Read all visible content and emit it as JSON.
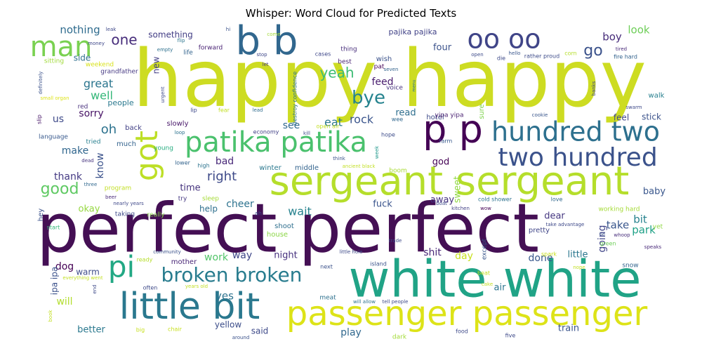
{
  "title": "Whisper: Word Cloud for Predicted Texts",
  "chart_data": {
    "type": "wordcloud",
    "title": "Whisper: Word Cloud for Predicted Texts",
    "palette": "viridis",
    "words": [
      {
        "text": "happy happy",
        "color": "#cddc22"
      },
      {
        "text": "perfect perfect",
        "color": "#440f54"
      },
      {
        "text": "white white",
        "color": "#20a386"
      },
      {
        "text": "sergeant sergeant",
        "color": "#b5de2b"
      },
      {
        "text": "little bit",
        "color": "#2a788e"
      },
      {
        "text": "passenger passenger",
        "color": "#dde318"
      },
      {
        "text": "b b",
        "color": "#31678e"
      },
      {
        "text": "oo oo",
        "color": "#404588"
      },
      {
        "text": "p p",
        "color": "#440154"
      },
      {
        "text": "patika patika",
        "color": "#4ac16d"
      },
      {
        "text": "hundred two",
        "color": "#2d708e"
      },
      {
        "text": "two hundred",
        "color": "#3b528b"
      },
      {
        "text": "got",
        "color": "#bddf26"
      },
      {
        "text": "man",
        "color": "#7ad151"
      },
      {
        "text": "pi",
        "color": "#22a884"
      },
      {
        "text": "broken broken",
        "color": "#287c8e"
      },
      {
        "text": "bye",
        "color": "#25838e"
      },
      {
        "text": "yeah",
        "color": "#3dbc74"
      },
      {
        "text": "right",
        "color": "#3e4a89"
      },
      {
        "text": "one",
        "color": "#472d7b"
      },
      {
        "text": "good",
        "color": "#5ec962"
      },
      {
        "text": "nothing",
        "color": "#2f6c8e"
      },
      {
        "text": "great",
        "color": "#2b758e"
      },
      {
        "text": "well",
        "color": "#35b779"
      },
      {
        "text": "oh",
        "color": "#2c728e"
      },
      {
        "text": "sorry",
        "color": "#471365"
      },
      {
        "text": "us",
        "color": "#3e4a89"
      },
      {
        "text": "make",
        "color": "#31678e"
      },
      {
        "text": "thank",
        "color": "#443a83"
      },
      {
        "text": "know",
        "color": "#3b528b"
      },
      {
        "text": "time",
        "color": "#46337e"
      },
      {
        "text": "okay",
        "color": "#95d840"
      },
      {
        "text": "bad",
        "color": "#482878"
      },
      {
        "text": "cheer",
        "color": "#2c728e"
      },
      {
        "text": "help",
        "color": "#2e6f8e"
      },
      {
        "text": "wait",
        "color": "#26828e"
      },
      {
        "text": "see",
        "color": "#31688e"
      },
      {
        "text": "eat",
        "color": "#2a788e"
      },
      {
        "text": "rock",
        "color": "#3a548c"
      },
      {
        "text": "feed",
        "color": "#481c6e"
      },
      {
        "text": "read",
        "color": "#2e6e8e"
      },
      {
        "text": "go",
        "color": "#3b528b"
      },
      {
        "text": "boy",
        "color": "#472c7a"
      },
      {
        "text": "look",
        "color": "#6ece58"
      },
      {
        "text": "four",
        "color": "#3b528b"
      },
      {
        "text": "god",
        "color": "#440154"
      },
      {
        "text": "baby",
        "color": "#39568c"
      },
      {
        "text": "sweet",
        "color": "#90d743"
      },
      {
        "text": "take",
        "color": "#39568c"
      },
      {
        "text": "bit",
        "color": "#26828e"
      },
      {
        "text": "park",
        "color": "#1fa187"
      },
      {
        "text": "going",
        "color": "#404588"
      },
      {
        "text": "dear",
        "color": "#453781"
      },
      {
        "text": "away",
        "color": "#46327e"
      },
      {
        "text": "fuck",
        "color": "#3a548c"
      },
      {
        "text": "shit",
        "color": "#482677"
      },
      {
        "text": "day",
        "color": "#c8e020"
      },
      {
        "text": "done",
        "color": "#38588c"
      },
      {
        "text": "little",
        "color": "#2a768e"
      },
      {
        "text": "work",
        "color": "#52c569"
      },
      {
        "text": "way",
        "color": "#3f4788"
      },
      {
        "text": "night",
        "color": "#46307e"
      },
      {
        "text": "dog",
        "color": "#440154"
      },
      {
        "text": "warm",
        "color": "#3e4c8a"
      },
      {
        "text": "ipa ipa",
        "color": "#3b518b"
      },
      {
        "text": "will",
        "color": "#b2dd2d"
      },
      {
        "text": "better",
        "color": "#2a788e"
      },
      {
        "text": "yes",
        "color": "#2c728e"
      },
      {
        "text": "play",
        "color": "#31688e"
      },
      {
        "text": "yellow",
        "color": "#3d4e8a"
      },
      {
        "text": "said",
        "color": "#3e4a89"
      },
      {
        "text": "train",
        "color": "#3a548c"
      },
      {
        "text": "air",
        "color": "#2b748e"
      },
      {
        "text": "stick",
        "color": "#3b528b"
      },
      {
        "text": "feel",
        "color": "#404588"
      },
      {
        "text": "walk",
        "color": "#277f8e"
      },
      {
        "text": "something",
        "color": "#433e85"
      },
      {
        "text": "side",
        "color": "#2e6f8e"
      },
      {
        "text": "new",
        "color": "#433e85"
      },
      {
        "text": "pajika pajika",
        "color": "#414287"
      },
      {
        "text": "people",
        "color": "#2a788e"
      },
      {
        "text": "back",
        "color": "#424186"
      },
      {
        "text": "slowly",
        "color": "#481769"
      },
      {
        "text": "much",
        "color": "#33628d"
      },
      {
        "text": "winter",
        "color": "#2a788e"
      },
      {
        "text": "middle",
        "color": "#33638d"
      },
      {
        "text": "sleep",
        "color": "#a5db36"
      },
      {
        "text": "shoot",
        "color": "#2e6f8e"
      },
      {
        "text": "house",
        "color": "#8bd646"
      },
      {
        "text": "mother",
        "color": "#482576"
      },
      {
        "text": "pretty",
        "color": "#404688"
      },
      {
        "text": "except",
        "color": "#39568c"
      },
      {
        "text": "snow",
        "color": "#33638d"
      },
      {
        "text": "hotel",
        "color": "#3e4a89"
      },
      {
        "text": "sure",
        "color": "#7fd34e"
      },
      {
        "text": "boom",
        "color": "#a8db34"
      },
      {
        "text": "language",
        "color": "#38598c"
      },
      {
        "text": "tried",
        "color": "#277f8e"
      },
      {
        "text": "young",
        "color": "#27ad81"
      },
      {
        "text": "high",
        "color": "#2c738e"
      },
      {
        "text": "lower",
        "color": "#33638d"
      },
      {
        "text": "try",
        "color": "#453882"
      },
      {
        "text": "taking",
        "color": "#3e4a89"
      },
      {
        "text": "really",
        "color": "#86d549"
      },
      {
        "text": "program",
        "color": "#c2df23"
      },
      {
        "text": "start",
        "color": "#35b779"
      },
      {
        "text": "hey",
        "color": "#3b528b"
      },
      {
        "text": "nearly years",
        "color": "#3f4889"
      },
      {
        "text": "beer",
        "color": "#482979"
      },
      {
        "text": "three",
        "color": "#31688e"
      },
      {
        "text": "dead",
        "color": "#46337e"
      },
      {
        "text": "red",
        "color": "#472f7d"
      },
      {
        "text": "slip",
        "color": "#481769"
      },
      {
        "text": "grandfather",
        "color": "#453882"
      },
      {
        "text": "weekend",
        "color": "#d8e219"
      },
      {
        "text": "sitting",
        "color": "#a0da39"
      },
      {
        "text": "money",
        "color": "#3f4889"
      },
      {
        "text": "leak",
        "color": "#3f4889"
      },
      {
        "text": "empty",
        "color": "#2d708e"
      },
      {
        "text": "life",
        "color": "#33638d"
      },
      {
        "text": "flip",
        "color": "#2b758e"
      },
      {
        "text": "forward",
        "color": "#482173"
      },
      {
        "text": "hi",
        "color": "#3b528b"
      },
      {
        "text": "let",
        "color": "#453882"
      },
      {
        "text": "stop",
        "color": "#3f4889"
      },
      {
        "text": "come",
        "color": "#a2da37"
      },
      {
        "text": "cases",
        "color": "#3f4889"
      },
      {
        "text": "thing",
        "color": "#472d7b"
      },
      {
        "text": "best",
        "color": "#482374"
      },
      {
        "text": "wish",
        "color": "#3b528b"
      },
      {
        "text": "pat",
        "color": "#440154"
      },
      {
        "text": "seven",
        "color": "#33638d"
      },
      {
        "text": "voice",
        "color": "#46327e"
      },
      {
        "text": "destroy confidence",
        "color": "#2c728e"
      },
      {
        "text": "lead",
        "color": "#2f6c8e"
      },
      {
        "text": "lip",
        "color": "#3e4989"
      },
      {
        "text": "fear",
        "color": "#c2df23"
      },
      {
        "text": "urgent",
        "color": "#3e4a89"
      },
      {
        "text": "small organ",
        "color": "#dde318"
      },
      {
        "text": "definitely",
        "color": "#3b528b"
      },
      {
        "text": "economy",
        "color": "#424086"
      },
      {
        "text": "open air",
        "color": "#c2df23"
      },
      {
        "text": "kill",
        "color": "#3e4a89"
      },
      {
        "text": "loop",
        "color": "#2c728e"
      },
      {
        "text": "wee",
        "color": "#31688e"
      },
      {
        "text": "hope",
        "color": "#3e4c8a"
      },
      {
        "text": "think",
        "color": "#3b528b"
      },
      {
        "text": "ancient black",
        "color": "#c2df23"
      },
      {
        "text": "week",
        "color": "#1f978b"
      },
      {
        "text": "yipa yipa",
        "color": "#481f70"
      },
      {
        "text": "menu",
        "color": "#2c728e"
      },
      {
        "text": "farm",
        "color": "#38598c"
      },
      {
        "text": "cookie",
        "color": "#39568c"
      },
      {
        "text": "die",
        "color": "#3e4a89"
      },
      {
        "text": "open",
        "color": "#3e4c8a"
      },
      {
        "text": "hello",
        "color": "#39568c"
      },
      {
        "text": "rather proud",
        "color": "#3e4c8a"
      },
      {
        "text": "corn",
        "color": "#b5de2b"
      },
      {
        "text": "tired",
        "color": "#482979"
      },
      {
        "text": "fire hard",
        "color": "#33638d"
      },
      {
        "text": "banks",
        "color": "#404688"
      },
      {
        "text": "swarm",
        "color": "#3e4989"
      },
      {
        "text": "love",
        "color": "#31688e"
      },
      {
        "text": "cold shower",
        "color": "#2c728e"
      },
      {
        "text": "boat",
        "color": "#3e4a89"
      },
      {
        "text": "kitchen",
        "color": "#424186"
      },
      {
        "text": "wow",
        "color": "#440154"
      },
      {
        "text": "working hard",
        "color": "#a5db36"
      },
      {
        "text": "yet",
        "color": "#90d743"
      },
      {
        "text": "take advantage",
        "color": "#3e4989"
      },
      {
        "text": "lie",
        "color": "#3b528b"
      },
      {
        "text": "whoop",
        "color": "#472d7b"
      },
      {
        "text": "green",
        "color": "#6ece58"
      },
      {
        "text": "speaks",
        "color": "#482878"
      },
      {
        "text": "spark",
        "color": "#c8e020"
      },
      {
        "text": "nope",
        "color": "#c2df23"
      },
      {
        "text": "beat",
        "color": "#c2df23"
      },
      {
        "text": "cake",
        "color": "#c2df23"
      },
      {
        "text": "trade",
        "color": "#3e4a89"
      },
      {
        "text": "island",
        "color": "#3b528b"
      },
      {
        "text": "little hole",
        "color": "#3e4a89"
      },
      {
        "text": "next",
        "color": "#3b528b"
      },
      {
        "text": "meat",
        "color": "#2d708e"
      },
      {
        "text": "will allow",
        "color": "#2c728e"
      },
      {
        "text": "tell people",
        "color": "#3e4a89"
      },
      {
        "text": "dark",
        "color": "#a2da37"
      },
      {
        "text": "food",
        "color": "#3e4a89"
      },
      {
        "text": "five",
        "color": "#3e4a89"
      },
      {
        "text": "community",
        "color": "#3b528b"
      },
      {
        "text": "ready",
        "color": "#b5de2b"
      },
      {
        "text": "often",
        "color": "#3e4a89"
      },
      {
        "text": "years old",
        "color": "#c2df23"
      },
      {
        "text": "end",
        "color": "#3e4a89"
      },
      {
        "text": "everything went",
        "color": "#c2df23"
      },
      {
        "text": "book",
        "color": "#c2df23"
      },
      {
        "text": "big",
        "color": "#c8e020"
      },
      {
        "text": "chair",
        "color": "#c8e020"
      },
      {
        "text": "around",
        "color": "#3b528b"
      },
      {
        "text": "ah",
        "color": "#3e4a89"
      }
    ]
  }
}
